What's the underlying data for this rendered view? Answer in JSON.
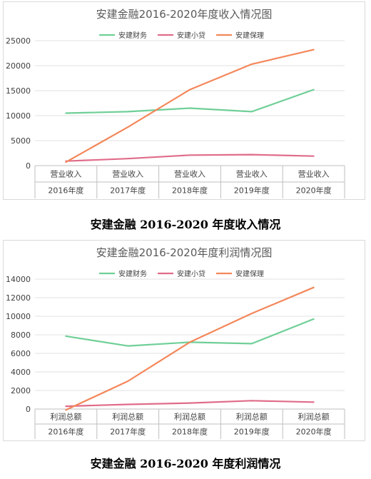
{
  "chart_data": [
    {
      "type": "line",
      "title": "安建金融2016-2020年度收入情况图",
      "categories": [
        [
          "营业收入",
          "2016年度"
        ],
        [
          "营业收入",
          "2017年度"
        ],
        [
          "营业收入",
          "2018年度"
        ],
        [
          "营业收入",
          "2019年度"
        ],
        [
          "营业收入",
          "2020年度"
        ]
      ],
      "series": [
        {
          "name": "安建财务",
          "color": "#6fcf97",
          "values": [
            10500,
            10800,
            11500,
            10800,
            15200
          ]
        },
        {
          "name": "安建小贷",
          "color": "#e06c8a",
          "values": [
            900,
            1400,
            2100,
            2200,
            1900
          ]
        },
        {
          "name": "安建保理",
          "color": "#f4875a",
          "values": [
            700,
            7700,
            15200,
            20300,
            23200
          ]
        }
      ],
      "yticks": [
        "0",
        "5000",
        "10000",
        "15000",
        "20000",
        "25000"
      ],
      "ylim": [
        0,
        25000
      ],
      "legend": "top",
      "grid": true
    },
    {
      "type": "line",
      "title": "安建金融2016-2020年度利润情况图",
      "categories": [
        [
          "利润总额",
          "2016年度"
        ],
        [
          "利润总额",
          "2017年度"
        ],
        [
          "利润总额",
          "2018年度"
        ],
        [
          "利润总额",
          "2019年度"
        ],
        [
          "利润总额",
          "2020年度"
        ]
      ],
      "series": [
        {
          "name": "安建财务",
          "color": "#6fcf97",
          "values": [
            7850,
            6800,
            7200,
            7050,
            9700
          ]
        },
        {
          "name": "安建小贷",
          "color": "#e06c8a",
          "values": [
            300,
            500,
            650,
            900,
            750
          ]
        },
        {
          "name": "安建保理",
          "color": "#f4875a",
          "values": [
            -100,
            3000,
            7200,
            10300,
            13100
          ]
        }
      ],
      "yticks": [
        "0",
        "2000",
        "4000",
        "6000",
        "8000",
        "10000",
        "12000",
        "14000"
      ],
      "ylim": [
        0,
        14000
      ],
      "legend": "top",
      "grid": true
    }
  ],
  "captions": [
    "安建金融 2016-2020 年度收入情况",
    "安建金融 2016-2020 年度利润情况"
  ]
}
